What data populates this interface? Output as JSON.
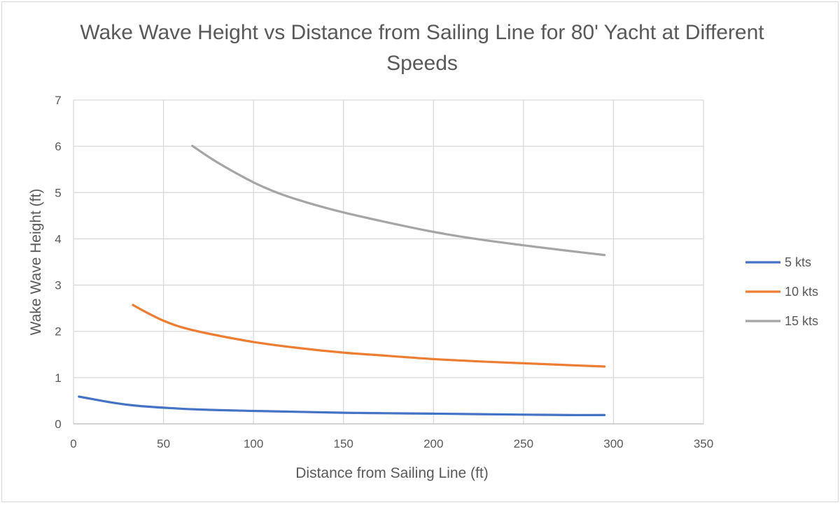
{
  "chart_data": {
    "type": "line",
    "title": "Wake Wave Height vs Distance from Sailing Line for 80' Yacht at Different Speeds",
    "xlabel": "Distance from Sailing Line (ft)",
    "ylabel": "Wake Wave Height (ft)",
    "xlim": [
      0,
      350
    ],
    "ylim": [
      0,
      7
    ],
    "x_ticks": [
      0,
      50,
      100,
      150,
      200,
      250,
      300,
      350
    ],
    "y_ticks": [
      0,
      1,
      2,
      3,
      4,
      5,
      6,
      7
    ],
    "grid": true,
    "legend_position": "right",
    "series": [
      {
        "name": "5 kts",
        "color": "#4472C4",
        "x": [
          3,
          10,
          20,
          33,
          50,
          70,
          100,
          125,
          150,
          175,
          200,
          225,
          250,
          275,
          295
        ],
        "y": [
          0.59,
          0.54,
          0.47,
          0.4,
          0.35,
          0.31,
          0.28,
          0.26,
          0.24,
          0.23,
          0.22,
          0.21,
          0.2,
          0.19,
          0.19
        ]
      },
      {
        "name": "10 kts",
        "color": "#ED7D31",
        "x": [
          33,
          40,
          50,
          60,
          75,
          100,
          125,
          150,
          175,
          200,
          225,
          250,
          275,
          295
        ],
        "y": [
          2.57,
          2.42,
          2.23,
          2.09,
          1.95,
          1.77,
          1.64,
          1.54,
          1.47,
          1.4,
          1.35,
          1.31,
          1.27,
          1.24
        ]
      },
      {
        "name": "15 kts",
        "color": "#A5A5A5",
        "x": [
          66,
          80,
          100,
          115,
          130,
          150,
          175,
          200,
          225,
          250,
          275,
          295
        ],
        "y": [
          6.01,
          5.65,
          5.22,
          4.97,
          4.78,
          4.57,
          4.35,
          4.15,
          3.99,
          3.86,
          3.74,
          3.65
        ]
      }
    ]
  }
}
